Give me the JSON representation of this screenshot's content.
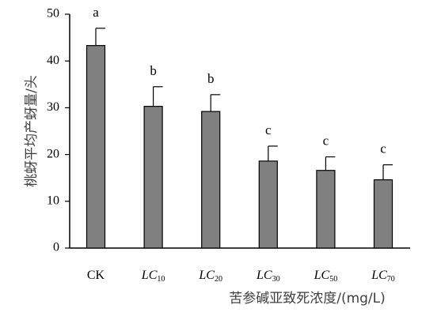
{
  "chart_data": {
    "type": "bar",
    "title": "",
    "xlabel": "苦参碱亚致死浓度/(mg/L)",
    "ylabel": "桃蚜平均产蚜量/头",
    "ylim": [
      0,
      50
    ],
    "yticks": [
      0,
      10,
      20,
      30,
      40,
      50
    ],
    "categories": [
      {
        "label": "CK",
        "base": "CK",
        "sub": ""
      },
      {
        "label": "LC10",
        "base": "LC",
        "sub": "10"
      },
      {
        "label": "LC20",
        "base": "LC",
        "sub": "20"
      },
      {
        "label": "LC30",
        "base": "LC",
        "sub": "30"
      },
      {
        "label": "LC50",
        "base": "LC",
        "sub": "50"
      },
      {
        "label": "LC70",
        "base": "LC",
        "sub": "70"
      }
    ],
    "values": [
      43.3,
      30.3,
      29.2,
      18.6,
      16.6,
      14.6
    ],
    "errors": [
      3.7,
      4.2,
      3.6,
      3.2,
      2.9,
      3.2
    ],
    "significance": [
      "a",
      "b",
      "b",
      "c",
      "c",
      "c"
    ],
    "grid": false,
    "bar_color": "#808080",
    "bar_stroke": "#000000"
  }
}
